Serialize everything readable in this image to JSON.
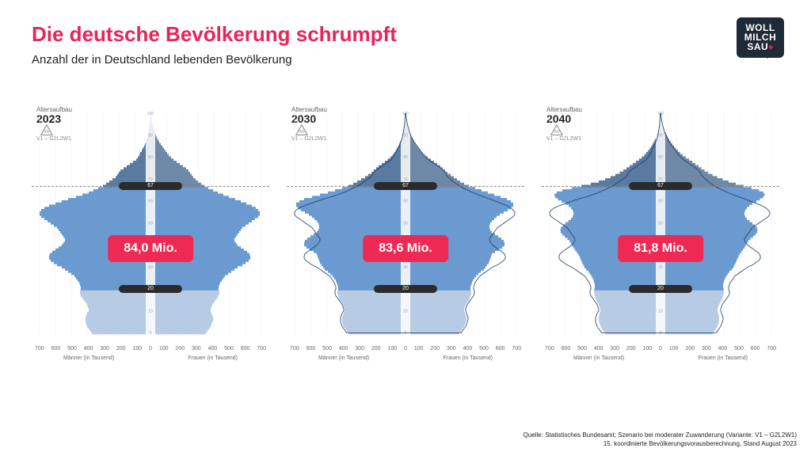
{
  "title": {
    "text": "Die deutsche Bevölkerung schrumpft",
    "color": "#e6255a"
  },
  "subtitle": "Anzahl der in Deutschland lebenden Bevölkerung",
  "logo": {
    "line1": "WOLL",
    "line2": "MILCH",
    "line3": "SAU",
    "bg": "#1e2a38",
    "heart": "#e6255a"
  },
  "colors": {
    "below20": "#b7cbe4",
    "working": "#6b9ad0",
    "above67_m": "#5a7ba1",
    "above67_f": "#6e89a8",
    "outline": "#1f3a5f",
    "grid": "#e9eef5",
    "badge_bg": "#ee2a54",
    "marker_bg": "#2b2b2b"
  },
  "axis": {
    "ticks_left": [
      700,
      600,
      500,
      400,
      300,
      200,
      100,
      0
    ],
    "ticks_right": [
      0,
      100,
      200,
      300,
      400,
      500,
      600,
      700
    ],
    "label_left": "Männer (in Tausend)",
    "label_right": "Frauen (in Tausend)",
    "max": 700
  },
  "age": {
    "min": 0,
    "max": 100,
    "break_low": 20,
    "break_high": 67
  },
  "marker_top": "67",
  "marker_bot": "20",
  "pyramids": [
    {
      "head": "Altersaufbau",
      "year": "2023",
      "sub": "V1 – G2L2W1",
      "badge": "84,0 Mio.",
      "male": [
        370,
        380,
        390,
        400,
        405,
        410,
        410,
        410,
        405,
        400,
        390,
        390,
        395,
        400,
        410,
        420,
        430,
        440,
        445,
        445,
        440,
        440,
        445,
        450,
        460,
        470,
        480,
        500,
        520,
        540,
        560,
        590,
        610,
        630,
        640,
        640,
        635,
        620,
        600,
        580,
        560,
        550,
        540,
        540,
        550,
        560,
        570,
        580,
        590,
        610,
        630,
        650,
        670,
        690,
        700,
        700,
        690,
        670,
        640,
        600,
        560,
        520,
        470,
        430,
        390,
        360,
        330,
        300,
        280,
        260,
        240,
        220,
        210,
        200,
        190,
        170,
        150,
        130,
        110,
        90,
        80,
        70,
        65,
        55,
        50,
        40,
        35,
        30,
        25,
        20,
        18,
        15,
        12,
        10,
        8,
        6,
        5,
        4,
        3,
        2,
        1
      ],
      "female": [
        350,
        360,
        370,
        380,
        385,
        390,
        395,
        395,
        390,
        385,
        380,
        380,
        385,
        390,
        400,
        410,
        420,
        430,
        435,
        435,
        430,
        430,
        435,
        440,
        450,
        460,
        470,
        490,
        510,
        530,
        550,
        580,
        600,
        620,
        630,
        630,
        625,
        610,
        590,
        570,
        550,
        540,
        530,
        530,
        540,
        550,
        560,
        570,
        580,
        600,
        620,
        640,
        660,
        680,
        690,
        690,
        680,
        665,
        640,
        605,
        570,
        535,
        495,
        460,
        425,
        395,
        365,
        340,
        320,
        300,
        285,
        270,
        260,
        250,
        240,
        225,
        205,
        185,
        165,
        145,
        130,
        115,
        105,
        95,
        85,
        75,
        65,
        55,
        48,
        40,
        34,
        28,
        24,
        20,
        16,
        12,
        10,
        7,
        5,
        3,
        2
      ],
      "outline": false
    },
    {
      "head": "Altersaufbau",
      "year": "2030",
      "sub": "V1 – G2L2W1",
      "badge": "83,6 Mio.",
      "male": [
        360,
        370,
        380,
        390,
        395,
        400,
        400,
        400,
        395,
        390,
        385,
        385,
        390,
        395,
        405,
        415,
        420,
        425,
        430,
        430,
        425,
        425,
        430,
        435,
        440,
        450,
        460,
        475,
        490,
        510,
        520,
        530,
        540,
        545,
        550,
        555,
        560,
        580,
        605,
        625,
        640,
        640,
        635,
        620,
        600,
        580,
        560,
        550,
        545,
        545,
        550,
        560,
        575,
        590,
        610,
        635,
        660,
        680,
        690,
        690,
        670,
        640,
        590,
        540,
        490,
        445,
        400,
        360,
        330,
        305,
        280,
        255,
        235,
        215,
        200,
        185,
        170,
        150,
        130,
        112,
        95,
        82,
        72,
        62,
        54,
        46,
        40,
        34,
        28,
        23,
        19,
        16,
        13,
        10,
        8,
        6,
        5,
        4,
        3,
        2,
        1
      ],
      "female": [
        340,
        350,
        360,
        370,
        375,
        380,
        385,
        385,
        380,
        375,
        370,
        370,
        375,
        380,
        390,
        400,
        405,
        410,
        415,
        415,
        410,
        410,
        415,
        420,
        425,
        435,
        445,
        460,
        475,
        495,
        505,
        515,
        525,
        530,
        535,
        540,
        545,
        565,
        590,
        610,
        625,
        625,
        620,
        605,
        585,
        565,
        545,
        535,
        530,
        530,
        535,
        545,
        560,
        575,
        595,
        620,
        645,
        665,
        680,
        680,
        665,
        640,
        600,
        560,
        520,
        480,
        440,
        400,
        370,
        345,
        325,
        305,
        285,
        265,
        250,
        235,
        220,
        200,
        180,
        160,
        140,
        122,
        108,
        95,
        84,
        73,
        64,
        55,
        47,
        40,
        34,
        29,
        24,
        20,
        16,
        12,
        9,
        7,
        5,
        3,
        2
      ],
      "outline": true
    },
    {
      "head": "Altersaufbau",
      "year": "2040",
      "sub": "V1 – G2L2W1",
      "badge": "81,8 Mio.",
      "male": [
        350,
        360,
        370,
        378,
        383,
        388,
        390,
        390,
        388,
        384,
        380,
        380,
        384,
        390,
        398,
        405,
        410,
        414,
        418,
        420,
        418,
        415,
        415,
        418,
        422,
        428,
        435,
        445,
        455,
        470,
        480,
        487,
        494,
        500,
        506,
        512,
        520,
        530,
        540,
        550,
        558,
        566,
        575,
        588,
        605,
        620,
        630,
        632,
        628,
        616,
        600,
        582,
        565,
        555,
        550,
        550,
        555,
        565,
        580,
        600,
        625,
        648,
        665,
        670,
        655,
        620,
        560,
        500,
        440,
        390,
        350,
        315,
        285,
        258,
        235,
        215,
        195,
        175,
        155,
        136,
        118,
        102,
        90,
        78,
        68,
        58,
        50,
        42,
        35,
        29,
        24,
        20,
        16,
        13,
        10,
        8,
        6,
        4,
        3,
        2,
        1
      ],
      "female": [
        330,
        340,
        350,
        358,
        363,
        368,
        370,
        370,
        368,
        364,
        360,
        360,
        364,
        370,
        378,
        385,
        390,
        394,
        398,
        400,
        398,
        395,
        395,
        398,
        402,
        408,
        415,
        425,
        435,
        450,
        460,
        467,
        474,
        480,
        486,
        492,
        500,
        510,
        520,
        530,
        538,
        546,
        555,
        568,
        585,
        600,
        610,
        612,
        608,
        596,
        580,
        562,
        545,
        535,
        530,
        530,
        535,
        545,
        560,
        580,
        605,
        628,
        648,
        658,
        650,
        622,
        575,
        525,
        475,
        430,
        392,
        358,
        328,
        300,
        278,
        258,
        240,
        220,
        200,
        180,
        160,
        140,
        124,
        110,
        97,
        85,
        74,
        64,
        55,
        47,
        40,
        34,
        28,
        23,
        18,
        14,
        11,
        8,
        6,
        4,
        2
      ],
      "outline": true
    }
  ],
  "outline_ref_index": 0,
  "footnote": {
    "line1": "Quelle: Statistisches Bundesamt; Szenario bei moderater Zuwanderung (Variante: V1 – G2L2W1)",
    "line2": "15. koordinierte Bevölkerungsvorausberechnung, Stand August 2023"
  }
}
